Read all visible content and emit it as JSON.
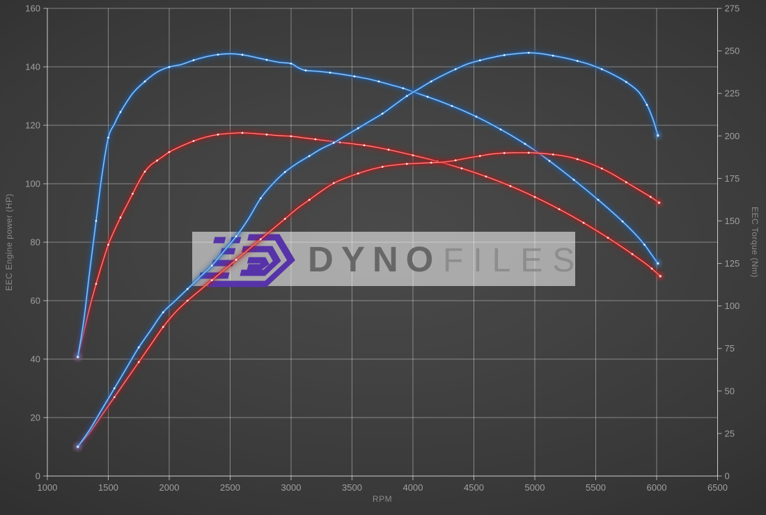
{
  "watermark": {
    "brand_primary": "DYNO",
    "brand_secondary": "FILES",
    "logo_color": "#5633a8",
    "band_color": "rgba(255,255,255,0.54)"
  },
  "colors": {
    "background": "#3d3d3d",
    "grid": "rgba(255,255,255,0.38)",
    "axis": "rgba(255,255,255,0.6)",
    "tick_text": "#a0a0a0",
    "axis_title_text": "#8a8a8a",
    "tuned_line": "#4693e0",
    "tuned_glow": "#1e5fae",
    "tuned_core": "#cfe4fa",
    "stock_line": "#e03232",
    "stock_glow": "#a81c1c",
    "stock_core": "#ffc9c9",
    "marker": "rgba(255,255,255,0.85)"
  },
  "chart_data": {
    "type": "line",
    "title": "",
    "xlabel": "RPM",
    "grid": true,
    "legend": "none",
    "x_axis": {
      "min": 1000,
      "max": 6500,
      "ticks": [
        1000,
        1500,
        2000,
        2500,
        3000,
        3500,
        4000,
        4500,
        5000,
        5500,
        6000,
        6500
      ]
    },
    "left_axis": {
      "label": "EEC Engine power (HP)",
      "min": 0,
      "max": 160,
      "ticks": [
        0,
        20,
        40,
        60,
        80,
        100,
        120,
        140,
        160
      ]
    },
    "right_axis": {
      "label": "EEC Torque (Nm)",
      "min": 0,
      "max": 275,
      "ticks": [
        0,
        25,
        50,
        75,
        100,
        125,
        150,
        175,
        200,
        225,
        250,
        275
      ]
    },
    "series": [
      {
        "name": "torque-stock",
        "axis": "right",
        "unit": "Nm",
        "color_role": "stock",
        "peak": {
          "rpm": 2600,
          "value": 201.8
        },
        "points": [
          [
            1250,
            70
          ],
          [
            1300,
            85
          ],
          [
            1350,
            100
          ],
          [
            1400,
            113
          ],
          [
            1450,
            125
          ],
          [
            1500,
            136
          ],
          [
            1550,
            144.5
          ],
          [
            1600,
            152
          ],
          [
            1650,
            159
          ],
          [
            1700,
            166
          ],
          [
            1750,
            173
          ],
          [
            1800,
            179
          ],
          [
            1850,
            183
          ],
          [
            1900,
            185.5
          ],
          [
            1950,
            188
          ],
          [
            2000,
            190.5
          ],
          [
            2100,
            194
          ],
          [
            2200,
            197
          ],
          [
            2300,
            199.3
          ],
          [
            2400,
            200.8
          ],
          [
            2500,
            201.5
          ],
          [
            2600,
            201.8
          ],
          [
            2700,
            201.4
          ],
          [
            2800,
            200.8
          ],
          [
            2900,
            200.2
          ],
          [
            3000,
            199.8
          ],
          [
            3100,
            198.9
          ],
          [
            3200,
            198
          ],
          [
            3300,
            197.1
          ],
          [
            3400,
            196.2
          ],
          [
            3500,
            195.4
          ],
          [
            3600,
            194.5
          ],
          [
            3700,
            193.3
          ],
          [
            3800,
            191.9
          ],
          [
            3900,
            190.3
          ],
          [
            4000,
            188.6
          ],
          [
            4100,
            186.9
          ],
          [
            4200,
            185
          ],
          [
            4300,
            183
          ],
          [
            4400,
            180.9
          ],
          [
            4500,
            178.6
          ],
          [
            4600,
            176.1
          ],
          [
            4700,
            173.4
          ],
          [
            4800,
            170.5
          ],
          [
            4900,
            167.4
          ],
          [
            5000,
            164.1
          ],
          [
            5100,
            160.6
          ],
          [
            5200,
            156.9
          ],
          [
            5300,
            153
          ],
          [
            5400,
            148.9
          ],
          [
            5500,
            144.6
          ],
          [
            5600,
            140.1
          ],
          [
            5700,
            135.4
          ],
          [
            5800,
            130.5
          ],
          [
            5900,
            125.4
          ],
          [
            5960,
            122
          ],
          [
            6030,
            117.5
          ]
        ]
      },
      {
        "name": "torque-tuned",
        "axis": "right",
        "unit": "Nm",
        "color_role": "tuned",
        "peak": {
          "rpm": 2500,
          "value": 248.3
        },
        "points": [
          [
            1250,
            70
          ],
          [
            1300,
            92
          ],
          [
            1350,
            122
          ],
          [
            1400,
            150
          ],
          [
            1450,
            178
          ],
          [
            1500,
            199
          ],
          [
            1550,
            207
          ],
          [
            1600,
            214
          ],
          [
            1700,
            225
          ],
          [
            1800,
            232
          ],
          [
            1900,
            237.5
          ],
          [
            2000,
            240.5
          ],
          [
            2100,
            242
          ],
          [
            2200,
            244.5
          ],
          [
            2300,
            246.5
          ],
          [
            2400,
            247.8
          ],
          [
            2500,
            248.3
          ],
          [
            2600,
            247.7
          ],
          [
            2700,
            246.3
          ],
          [
            2800,
            244.7
          ],
          [
            2900,
            243.3
          ],
          [
            3000,
            242.5
          ],
          [
            3060,
            240
          ],
          [
            3120,
            238.5
          ],
          [
            3220,
            238
          ],
          [
            3320,
            237.2
          ],
          [
            3420,
            236.2
          ],
          [
            3520,
            235
          ],
          [
            3620,
            233.7
          ],
          [
            3720,
            232
          ],
          [
            3820,
            230
          ],
          [
            3920,
            228
          ],
          [
            4020,
            225.5
          ],
          [
            4120,
            223
          ],
          [
            4220,
            220.4
          ],
          [
            4320,
            217.6
          ],
          [
            4420,
            214.6
          ],
          [
            4520,
            211.3
          ],
          [
            4620,
            207.7
          ],
          [
            4720,
            203.8
          ],
          [
            4820,
            199.7
          ],
          [
            4920,
            195.3
          ],
          [
            5020,
            190.5
          ],
          [
            5120,
            185.3
          ],
          [
            5220,
            179.8
          ],
          [
            5320,
            174.2
          ],
          [
            5420,
            168.4
          ],
          [
            5520,
            162.4
          ],
          [
            5620,
            156.2
          ],
          [
            5720,
            149.7
          ],
          [
            5820,
            142.6
          ],
          [
            5900,
            136
          ],
          [
            5960,
            130
          ],
          [
            6010,
            125
          ]
        ]
      },
      {
        "name": "power-stock",
        "axis": "left",
        "unit": "HP",
        "color_role": "stock",
        "peak": {
          "rpm": 4900,
          "value": 110.6
        },
        "points": [
          [
            1250,
            10
          ],
          [
            1350,
            15
          ],
          [
            1450,
            21
          ],
          [
            1550,
            27
          ],
          [
            1650,
            33
          ],
          [
            1750,
            39
          ],
          [
            1850,
            45
          ],
          [
            1950,
            51
          ],
          [
            2050,
            56
          ],
          [
            2150,
            60
          ],
          [
            2250,
            63.5
          ],
          [
            2350,
            67
          ],
          [
            2450,
            70.5
          ],
          [
            2550,
            74
          ],
          [
            2650,
            77.5
          ],
          [
            2750,
            81
          ],
          [
            2850,
            84.5
          ],
          [
            2950,
            88
          ],
          [
            3050,
            91.5
          ],
          [
            3150,
            94.5
          ],
          [
            3250,
            97.5
          ],
          [
            3350,
            100.2
          ],
          [
            3450,
            102
          ],
          [
            3550,
            103.5
          ],
          [
            3650,
            104.8
          ],
          [
            3750,
            105.8
          ],
          [
            3850,
            106.4
          ],
          [
            3950,
            106.8
          ],
          [
            4050,
            107
          ],
          [
            4150,
            107.2
          ],
          [
            4250,
            107.4
          ],
          [
            4350,
            108
          ],
          [
            4450,
            108.8
          ],
          [
            4550,
            109.5
          ],
          [
            4650,
            110.2
          ],
          [
            4750,
            110.5
          ],
          [
            4850,
            110.6
          ],
          [
            4950,
            110.6
          ],
          [
            5050,
            110.4
          ],
          [
            5150,
            110
          ],
          [
            5250,
            109.4
          ],
          [
            5350,
            108.4
          ],
          [
            5450,
            107
          ],
          [
            5550,
            105.2
          ],
          [
            5650,
            103
          ],
          [
            5750,
            100.5
          ],
          [
            5850,
            98
          ],
          [
            5950,
            95.5
          ],
          [
            6020,
            93.5
          ]
        ]
      },
      {
        "name": "power-tuned",
        "axis": "left",
        "unit": "HP",
        "color_role": "tuned",
        "peak": {
          "rpm": 4950,
          "value": 144.8
        },
        "points": [
          [
            1250,
            10
          ],
          [
            1350,
            16
          ],
          [
            1450,
            23
          ],
          [
            1550,
            30
          ],
          [
            1650,
            37
          ],
          [
            1750,
            44
          ],
          [
            1850,
            50
          ],
          [
            1950,
            56
          ],
          [
            2050,
            60
          ],
          [
            2150,
            64
          ],
          [
            2250,
            68
          ],
          [
            2350,
            72
          ],
          [
            2450,
            77
          ],
          [
            2550,
            82
          ],
          [
            2650,
            88
          ],
          [
            2750,
            95
          ],
          [
            2850,
            100
          ],
          [
            2950,
            104
          ],
          [
            3050,
            107
          ],
          [
            3150,
            109.5
          ],
          [
            3250,
            112
          ],
          [
            3350,
            114
          ],
          [
            3450,
            116.5
          ],
          [
            3550,
            119
          ],
          [
            3650,
            121.5
          ],
          [
            3750,
            124
          ],
          [
            3850,
            127
          ],
          [
            3950,
            130
          ],
          [
            4050,
            132.5
          ],
          [
            4150,
            135
          ],
          [
            4250,
            137.2
          ],
          [
            4350,
            139.2
          ],
          [
            4450,
            141
          ],
          [
            4550,
            142.2
          ],
          [
            4650,
            143.2
          ],
          [
            4750,
            144
          ],
          [
            4850,
            144.5
          ],
          [
            4950,
            144.8
          ],
          [
            5050,
            144.5
          ],
          [
            5150,
            143.8
          ],
          [
            5250,
            143
          ],
          [
            5350,
            142
          ],
          [
            5450,
            140.8
          ],
          [
            5550,
            139.2
          ],
          [
            5650,
            137.2
          ],
          [
            5750,
            134.8
          ],
          [
            5850,
            131.5
          ],
          [
            5920,
            127
          ],
          [
            5970,
            122
          ],
          [
            6010,
            116.5
          ]
        ]
      }
    ]
  }
}
